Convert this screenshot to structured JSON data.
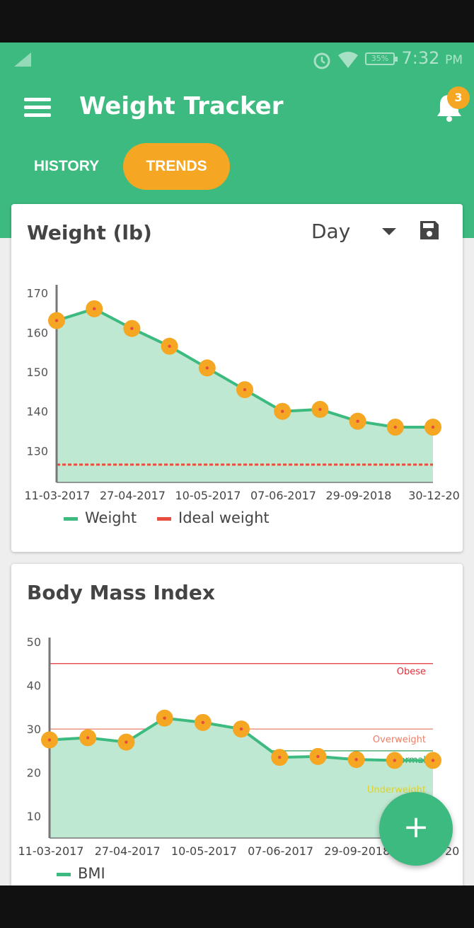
{
  "status_bar": {
    "time": "7:32",
    "ampm": "PM",
    "battery": "35%"
  },
  "app_bar": {
    "title": "Weight Tracker",
    "notification_count": "3"
  },
  "tabs": [
    {
      "label": "HISTORY",
      "selected": false
    },
    {
      "label": "TRENDS",
      "selected": true
    }
  ],
  "weight_card": {
    "title": "Weight (lb)",
    "period": "Day"
  },
  "bmi_card": {
    "title": "Body Mass Index"
  },
  "colors": {
    "primary": "#3dba7f",
    "accent": "#f5a623",
    "line": "#3dba7f",
    "area": "#bfe8d2",
    "ideal": "#e74c3c",
    "obese": "#e0303a",
    "overweight": "#e8816a",
    "normal": "#2e9e5b",
    "underweight": "#d9d23a"
  },
  "chart_data": [
    {
      "type": "area",
      "ylim": [
        122,
        171
      ],
      "yticks": [
        130,
        140,
        150,
        160,
        170
      ],
      "xlabels": [
        "11-03-2017",
        "27-04-2017",
        "10-05-2017",
        "07-06-2017",
        "29-09-2018",
        "30-12-20"
      ],
      "series": [
        {
          "name": "Weight",
          "values": [
            163,
            166,
            161,
            156.5,
            151,
            145.5,
            140,
            140.5,
            137.5,
            136,
            136
          ]
        },
        {
          "name": "Ideal weight",
          "values": [
            126.5
          ]
        }
      ]
    },
    {
      "type": "area",
      "ylim": [
        5,
        50
      ],
      "yticks": [
        10,
        20,
        30,
        40,
        50
      ],
      "xlabels": [
        "11-03-2017",
        "27-04-2017",
        "10-05-2017",
        "07-06-2017",
        "29-09-2018",
        "30-12-20"
      ],
      "series": [
        {
          "name": "BMI",
          "values": [
            27.5,
            28,
            27,
            32.5,
            31.5,
            30,
            23.5,
            23.7,
            23,
            22.8,
            22.8
          ]
        }
      ],
      "thresholds": [
        {
          "label": "Obese",
          "value": 45
        },
        {
          "label": "Overweight",
          "value": 30
        },
        {
          "label": "Normal",
          "value": 25
        },
        {
          "label": "Underweight",
          "value": 18.5
        }
      ]
    }
  ]
}
